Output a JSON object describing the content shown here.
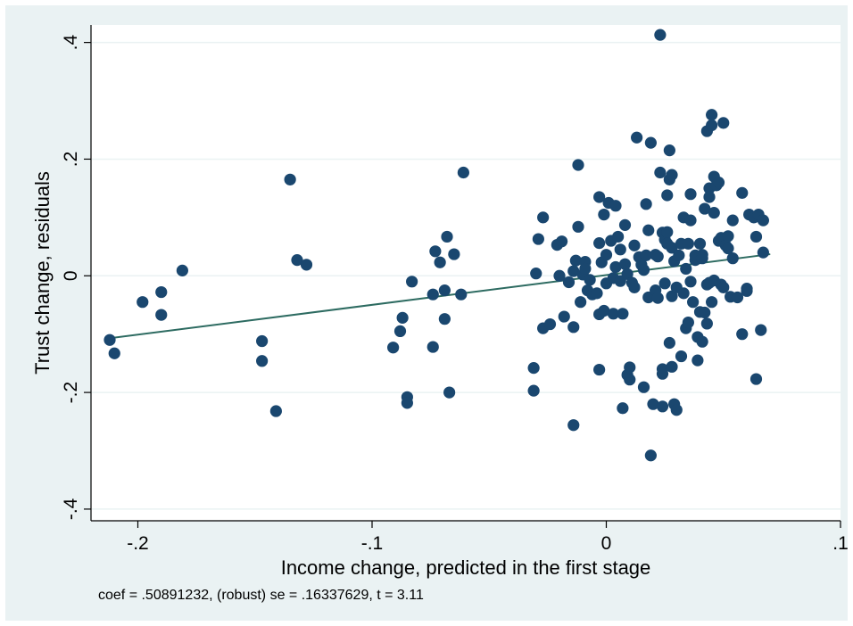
{
  "chart_data": {
    "type": "scatter",
    "xlabel": "Income change, predicted in the first stage",
    "ylabel": "Trust change, residuals",
    "note": "coef = .50891232, (robust) se = .16337629, t = 3.11",
    "xlim": [
      -0.22,
      0.1
    ],
    "ylim": [
      -0.42,
      0.43
    ],
    "xticks": [
      -0.2,
      -0.1,
      0,
      0.1
    ],
    "xtick_labels": [
      "-.2",
      "-.1",
      "0",
      ".1"
    ],
    "yticks": [
      -0.4,
      -0.2,
      0,
      0.2,
      0.4
    ],
    "ytick_labels": [
      "-.4",
      "-.2",
      "0",
      ".2",
      ".4"
    ],
    "grid": true,
    "colors": {
      "background": "#eaf2f3",
      "plot_area": "#ffffff",
      "markers": "#1a476f",
      "fit_line": "#2d6b61"
    },
    "fit_line": {
      "x": [
        -0.212,
        0.07
      ],
      "y": [
        -0.107,
        0.037
      ]
    },
    "points": [
      [
        -0.212,
        -0.11
      ],
      [
        -0.21,
        -0.133
      ],
      [
        -0.198,
        -0.045
      ],
      [
        -0.19,
        -0.028
      ],
      [
        -0.19,
        -0.067
      ],
      [
        -0.181,
        0.009
      ],
      [
        -0.147,
        -0.112
      ],
      [
        -0.147,
        -0.146
      ],
      [
        -0.141,
        -0.232
      ],
      [
        -0.135,
        0.165
      ],
      [
        -0.132,
        0.027
      ],
      [
        -0.128,
        0.019
      ],
      [
        -0.091,
        -0.123
      ],
      [
        -0.088,
        -0.095
      ],
      [
        -0.087,
        -0.072
      ],
      [
        -0.085,
        -0.208
      ],
      [
        -0.085,
        -0.218
      ],
      [
        -0.083,
        -0.01
      ],
      [
        -0.074,
        -0.122
      ],
      [
        -0.074,
        -0.032
      ],
      [
        -0.073,
        0.042
      ],
      [
        -0.071,
        0.023
      ],
      [
        -0.069,
        -0.074
      ],
      [
        -0.069,
        -0.025
      ],
      [
        -0.068,
        0.067
      ],
      [
        -0.067,
        -0.2
      ],
      [
        -0.065,
        0.037
      ],
      [
        -0.062,
        -0.032
      ],
      [
        -0.061,
        0.177
      ],
      [
        -0.031,
        -0.197
      ],
      [
        -0.031,
        -0.158
      ],
      [
        -0.03,
        0.004
      ],
      [
        -0.029,
        0.063
      ],
      [
        -0.027,
        -0.09
      ],
      [
        -0.027,
        0.1
      ],
      [
        -0.024,
        -0.083
      ],
      [
        -0.021,
        0.053
      ],
      [
        -0.02,
        0.0
      ],
      [
        -0.019,
        0.059
      ],
      [
        -0.018,
        -0.07
      ],
      [
        -0.016,
        -0.011
      ],
      [
        -0.014,
        -0.088
      ],
      [
        -0.014,
        -0.256
      ],
      [
        -0.014,
        0.008
      ],
      [
        -0.013,
        0.026
      ],
      [
        -0.012,
        0.19
      ],
      [
        -0.012,
        0.084
      ],
      [
        -0.011,
        -0.045
      ],
      [
        -0.01,
        0.002
      ],
      [
        -0.009,
        0.024
      ],
      [
        -0.009,
        0.012
      ],
      [
        -0.008,
        -0.025
      ],
      [
        -0.007,
        -0.007
      ],
      [
        -0.006,
        -0.032
      ],
      [
        -0.004,
        -0.03
      ],
      [
        -0.003,
        -0.066
      ],
      [
        -0.003,
        -0.161
      ],
      [
        -0.003,
        0.135
      ],
      [
        -0.003,
        0.056
      ],
      [
        -0.002,
        0.023
      ],
      [
        -0.001,
        -0.06
      ],
      [
        -0.001,
        0.105
      ],
      [
        0.0,
        -0.013
      ],
      [
        0.0,
        0.036
      ],
      [
        0.001,
        0.125
      ],
      [
        0.002,
        0.06
      ],
      [
        0.003,
        -0.065
      ],
      [
        0.003,
        -0.004
      ],
      [
        0.004,
        0.12
      ],
      [
        0.004,
        0.015
      ],
      [
        0.005,
        0.067
      ],
      [
        0.006,
        -0.009
      ],
      [
        0.006,
        0.045
      ],
      [
        0.007,
        -0.227
      ],
      [
        0.007,
        -0.065
      ],
      [
        0.008,
        0.02
      ],
      [
        0.008,
        0.087
      ],
      [
        0.009,
        -0.17
      ],
      [
        0.009,
        0.003
      ],
      [
        0.01,
        -0.157
      ],
      [
        0.01,
        -0.178
      ],
      [
        0.011,
        -0.012
      ],
      [
        0.012,
        0.052
      ],
      [
        0.012,
        -0.02
      ],
      [
        0.013,
        0.237
      ],
      [
        0.014,
        0.032
      ],
      [
        0.015,
        0.019
      ],
      [
        0.016,
        0.01
      ],
      [
        0.016,
        -0.191
      ],
      [
        0.017,
        0.123
      ],
      [
        0.017,
        0.035
      ],
      [
        0.018,
        0.078
      ],
      [
        0.018,
        -0.037
      ],
      [
        0.019,
        -0.308
      ],
      [
        0.019,
        0.228
      ],
      [
        0.02,
        -0.22
      ],
      [
        0.021,
        0.036
      ],
      [
        0.021,
        -0.025
      ],
      [
        0.022,
        0.033
      ],
      [
        0.022,
        -0.038
      ],
      [
        0.023,
        0.177
      ],
      [
        0.023,
        0.413
      ],
      [
        0.024,
        0.074
      ],
      [
        0.024,
        -0.16
      ],
      [
        0.024,
        -0.168
      ],
      [
        0.024,
        -0.224
      ],
      [
        0.025,
        0.062
      ],
      [
        0.025,
        -0.013
      ],
      [
        0.026,
        0.075
      ],
      [
        0.026,
        0.138
      ],
      [
        0.026,
        0.055
      ],
      [
        0.027,
        -0.115
      ],
      [
        0.027,
        0.215
      ],
      [
        0.027,
        0.165
      ],
      [
        0.028,
        0.048
      ],
      [
        0.028,
        0.173
      ],
      [
        0.028,
        -0.156
      ],
      [
        0.028,
        -0.035
      ],
      [
        0.029,
        -0.22
      ],
      [
        0.029,
        0.025
      ],
      [
        0.03,
        -0.02
      ],
      [
        0.03,
        -0.23
      ],
      [
        0.031,
        0.035
      ],
      [
        0.032,
        -0.138
      ],
      [
        0.032,
        0.055
      ],
      [
        0.033,
        0.1
      ],
      [
        0.033,
        -0.03
      ],
      [
        0.034,
        0.012
      ],
      [
        0.034,
        -0.09
      ],
      [
        0.035,
        0.055
      ],
      [
        0.035,
        -0.08
      ],
      [
        0.036,
        0.095
      ],
      [
        0.036,
        0.14
      ],
      [
        0.036,
        -0.01
      ],
      [
        0.037,
        -0.045
      ],
      [
        0.038,
        0.027
      ],
      [
        0.038,
        0.035
      ],
      [
        0.039,
        -0.145
      ],
      [
        0.039,
        -0.105
      ],
      [
        0.04,
        0.055
      ],
      [
        0.04,
        -0.062
      ],
      [
        0.041,
        -0.113
      ],
      [
        0.041,
        0.036
      ],
      [
        0.041,
        0.03
      ],
      [
        0.042,
        0.115
      ],
      [
        0.042,
        -0.063
      ],
      [
        0.043,
        -0.015
      ],
      [
        0.043,
        0.248
      ],
      [
        0.043,
        -0.082
      ],
      [
        0.044,
        0.15
      ],
      [
        0.044,
        -0.012
      ],
      [
        0.044,
        0.135
      ],
      [
        0.045,
        0.276
      ],
      [
        0.045,
        0.258
      ],
      [
        0.045,
        -0.045
      ],
      [
        0.046,
        0.108
      ],
      [
        0.046,
        0.17
      ],
      [
        0.046,
        -0.008
      ],
      [
        0.047,
        0.155
      ],
      [
        0.048,
        0.16
      ],
      [
        0.048,
        0.06
      ],
      [
        0.049,
        -0.015
      ],
      [
        0.049,
        0.065
      ],
      [
        0.05,
        0.262
      ],
      [
        0.05,
        -0.02
      ],
      [
        0.051,
        0.052
      ],
      [
        0.052,
        0.047
      ],
      [
        0.052,
        0.068
      ],
      [
        0.053,
        -0.036
      ],
      [
        0.054,
        0.095
      ],
      [
        0.054,
        0.03
      ],
      [
        0.056,
        -0.037
      ],
      [
        0.058,
        0.142
      ],
      [
        0.058,
        -0.1
      ],
      [
        0.06,
        -0.026
      ],
      [
        0.06,
        -0.022
      ],
      [
        0.061,
        0.105
      ],
      [
        0.063,
        0.1
      ],
      [
        0.064,
        0.067
      ],
      [
        0.064,
        -0.177
      ],
      [
        0.065,
        0.105
      ],
      [
        0.066,
        -0.093
      ],
      [
        0.067,
        0.04
      ],
      [
        0.067,
        0.095
      ]
    ]
  }
}
